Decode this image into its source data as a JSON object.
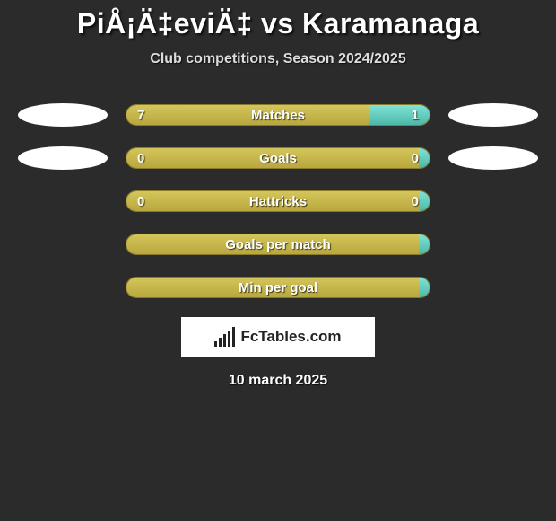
{
  "title": "PiÅ¡Ä‡eviÄ‡ vs Karamanaga",
  "subtitle": "Club competitions, Season 2024/2025",
  "date": "10 march 2025",
  "logo_text": "FcTables.com",
  "colors": {
    "background": "#2b2b2b",
    "bar_left_top": "#d4c65a",
    "bar_left_bottom": "#b8a73e",
    "bar_right_top": "#7fe3d6",
    "bar_right_bottom": "#4db8a8",
    "bar_border": "#8a7a2a",
    "ellipse": "#ffffff",
    "text": "#ffffff"
  },
  "stats": [
    {
      "label": "Matches",
      "left_val": "7",
      "right_val": "1",
      "left_pct": 80,
      "right_pct": 20,
      "show_ellipses": true
    },
    {
      "label": "Goals",
      "left_val": "0",
      "right_val": "0",
      "left_pct": 100,
      "right_pct": 0,
      "show_ellipses": true
    },
    {
      "label": "Hattricks",
      "left_val": "0",
      "right_val": "0",
      "left_pct": 100,
      "right_pct": 0,
      "show_ellipses": false
    },
    {
      "label": "Goals per match",
      "left_val": "",
      "right_val": "",
      "left_pct": 100,
      "right_pct": 0,
      "show_ellipses": false
    },
    {
      "label": "Min per goal",
      "left_val": "",
      "right_val": "",
      "left_pct": 100,
      "right_pct": 0,
      "show_ellipses": false
    }
  ]
}
